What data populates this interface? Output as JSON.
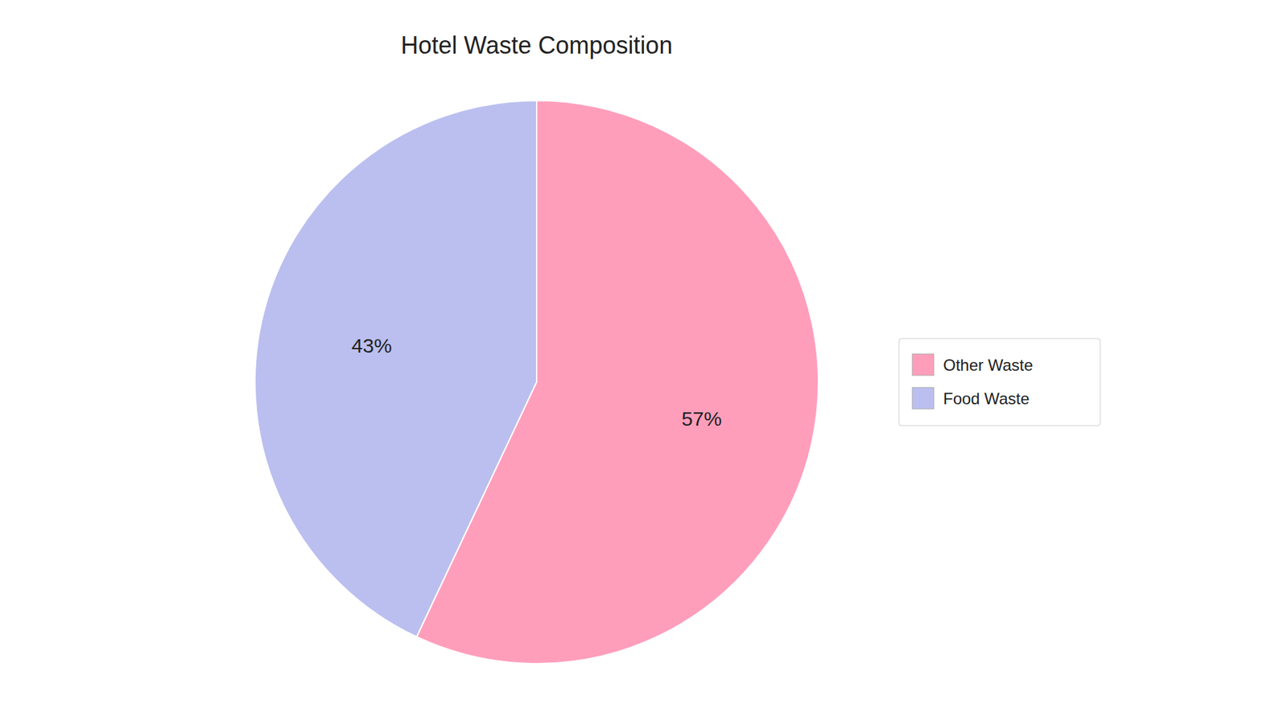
{
  "chart_data": {
    "type": "pie",
    "title": "Hotel Waste Composition",
    "categories": [
      "Food Waste",
      "Other Waste"
    ],
    "values": [
      43,
      57
    ],
    "value_labels": [
      "43%",
      "57%"
    ],
    "colors": [
      "#BBBFEF",
      "#FF9EBB"
    ],
    "data_labels": true,
    "legend": "right"
  }
}
